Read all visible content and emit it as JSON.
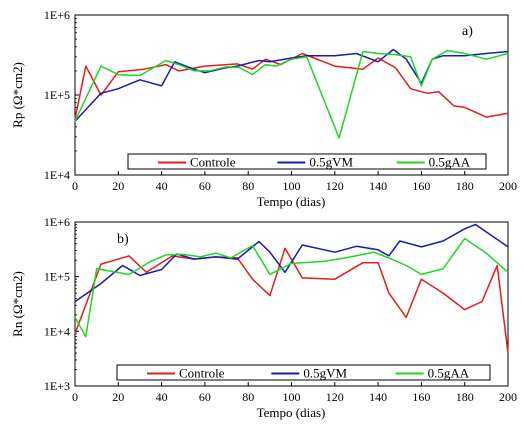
{
  "chart_data": [
    {
      "type": "line",
      "panel_label": "a)",
      "xlabel": "Tempo (dias)",
      "ylabel": "Rp (Ω*cm2)",
      "xlim": [
        0,
        200
      ],
      "ylim": [
        10000,
        1000000
      ],
      "yscale": "log",
      "x_ticks": [
        0,
        20,
        40,
        60,
        80,
        100,
        120,
        140,
        160,
        180,
        200
      ],
      "y_ticks": [
        {
          "value": 10000,
          "label": "1E+4"
        },
        {
          "value": 100000,
          "label": "1E+5"
        },
        {
          "value": 1000000,
          "label": "1E+6"
        }
      ],
      "legend_position": "bottom",
      "series": [
        {
          "name": "Controle",
          "color": "#e41c1c",
          "x": [
            0,
            5,
            12,
            20,
            32,
            42,
            48,
            60,
            70,
            75,
            82,
            88,
            95,
            105,
            120,
            133,
            140,
            148,
            155,
            160,
            163,
            168,
            175,
            180,
            190,
            200
          ],
          "y": [
            50000,
            230000,
            100000,
            195000,
            210000,
            240000,
            200000,
            230000,
            240000,
            245000,
            210000,
            280000,
            240000,
            330000,
            230000,
            210000,
            290000,
            220000,
            120000,
            110000,
            105000,
            110000,
            73000,
            70000,
            53000,
            59000
          ]
        },
        {
          "name": "0.5gVM",
          "color": "#1a1ab0",
          "x": [
            0,
            12,
            20,
            30,
            40,
            46,
            55,
            60,
            70,
            75,
            85,
            90,
            100,
            107,
            120,
            130,
            140,
            147,
            153,
            160,
            165,
            170,
            180,
            190,
            200
          ],
          "y": [
            47000,
            105000,
            120000,
            155000,
            130000,
            260000,
            210000,
            190000,
            220000,
            230000,
            270000,
            260000,
            290000,
            310000,
            310000,
            330000,
            260000,
            370000,
            280000,
            140000,
            280000,
            310000,
            310000,
            330000,
            350000
          ]
        },
        {
          "name": "0.5gAA",
          "color": "#1ed81e",
          "x": [
            0,
            12,
            20,
            30,
            42,
            48,
            55,
            62,
            70,
            76,
            82,
            88,
            93,
            100,
            107,
            122,
            133,
            140,
            148,
            155,
            160,
            165,
            172,
            180,
            190,
            200
          ],
          "y": [
            47000,
            230000,
            180000,
            175000,
            270000,
            240000,
            200000,
            200000,
            225000,
            220000,
            180000,
            240000,
            230000,
            280000,
            300000,
            29000,
            350000,
            330000,
            320000,
            300000,
            130000,
            280000,
            360000,
            330000,
            280000,
            330000
          ]
        }
      ]
    },
    {
      "type": "line",
      "panel_label": "b)",
      "xlabel": "Tempo (dias)",
      "ylabel": "Rn (Ω*cm2)",
      "xlim": [
        0,
        200
      ],
      "ylim": [
        1000,
        1000000
      ],
      "yscale": "log",
      "x_ticks": [
        0,
        20,
        40,
        60,
        80,
        100,
        120,
        140,
        160,
        180,
        200
      ],
      "y_ticks": [
        {
          "value": 1000,
          "label": "1E+3"
        },
        {
          "value": 10000,
          "label": "1E+4"
        },
        {
          "value": 100000,
          "label": "1E+5"
        },
        {
          "value": 1000000,
          "label": "1E+6"
        }
      ],
      "legend_position": "bottom",
      "series": [
        {
          "name": "Controle",
          "color": "#e41c1c",
          "x": [
            0,
            12,
            25,
            33,
            45,
            55,
            65,
            75,
            82,
            90,
            97,
            105,
            120,
            133,
            140,
            145,
            153,
            160,
            170,
            180,
            188,
            195,
            200
          ],
          "y": [
            9000,
            170000,
            240000,
            120000,
            240000,
            210000,
            230000,
            220000,
            90000,
            45000,
            330000,
            95000,
            90000,
            180000,
            180000,
            50000,
            18000,
            90000,
            50000,
            25000,
            35000,
            160000,
            4000
          ]
        },
        {
          "name": "0.5gVM",
          "color": "#1a1ab0",
          "x": [
            0,
            12,
            22,
            30,
            40,
            47,
            55,
            65,
            75,
            85,
            90,
            97,
            105,
            120,
            130,
            140,
            145,
            150,
            160,
            170,
            180,
            185,
            200
          ],
          "y": [
            35000,
            75000,
            160000,
            105000,
            135000,
            260000,
            210000,
            230000,
            210000,
            440000,
            280000,
            120000,
            380000,
            280000,
            360000,
            310000,
            240000,
            450000,
            350000,
            450000,
            750000,
            900000,
            350000
          ]
        },
        {
          "name": "0.5gAA",
          "color": "#1ed81e",
          "x": [
            0,
            5,
            10,
            25,
            35,
            42,
            50,
            58,
            65,
            72,
            82,
            90,
            100,
            115,
            125,
            138,
            145,
            153,
            160,
            170,
            180,
            190,
            200
          ],
          "y": [
            18000,
            8000,
            140000,
            110000,
            190000,
            250000,
            255000,
            230000,
            270000,
            220000,
            370000,
            110000,
            175000,
            190000,
            220000,
            280000,
            220000,
            160000,
            110000,
            140000,
            500000,
            270000,
            120000
          ]
        }
      ]
    }
  ]
}
